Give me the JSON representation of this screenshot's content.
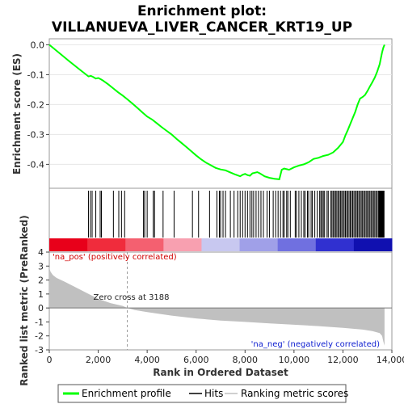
{
  "chart_data": {
    "type": "line",
    "title_line1": "Enrichment plot:",
    "title_line2": "VILLANUEVA_LIVER_CANCER_KRT19_UP",
    "es_panel": {
      "ylabel": "Enrichment score (ES)",
      "ylim": [
        -0.48,
        0.02
      ],
      "yticks": [
        "0.0",
        "-0.1",
        "-0.2",
        "-0.3",
        "-0.4"
      ],
      "series": [
        {
          "name": "Enrichment profile",
          "color": "#00ff00",
          "x": [
            0,
            400,
            800,
            1200,
            1600,
            1700,
            1800,
            1900,
            2000,
            2100,
            2200,
            2400,
            2600,
            2800,
            3000,
            3200,
            3400,
            3600,
            3800,
            4000,
            4200,
            4400,
            4600,
            4800,
            5000,
            5200,
            5400,
            5600,
            5800,
            6000,
            6200,
            6400,
            6600,
            6800,
            7000,
            7200,
            7400,
            7600,
            7800,
            7900,
            8000,
            8100,
            8200,
            8300,
            8400,
            8500,
            8600,
            8700,
            8800,
            9000,
            9200,
            9400,
            9500,
            9600,
            9800,
            10000,
            10200,
            10400,
            10600,
            10800,
            11000,
            11200,
            11400,
            11600,
            11800,
            12000,
            12100,
            12200,
            12300,
            12400,
            12500,
            12600,
            12700,
            12800,
            12900,
            13000,
            13100,
            13200,
            13300,
            13400,
            13500,
            13550,
            13600,
            13650,
            13700
          ],
          "y": [
            0.0,
            -0.027,
            -0.054,
            -0.08,
            -0.106,
            -0.104,
            -0.108,
            -0.113,
            -0.111,
            -0.115,
            -0.12,
            -0.132,
            -0.145,
            -0.158,
            -0.17,
            -0.183,
            -0.197,
            -0.211,
            -0.226,
            -0.24,
            -0.25,
            -0.263,
            -0.276,
            -0.288,
            -0.3,
            -0.315,
            -0.328,
            -0.342,
            -0.356,
            -0.37,
            -0.383,
            -0.394,
            -0.403,
            -0.412,
            -0.417,
            -0.42,
            -0.427,
            -0.434,
            -0.44,
            -0.435,
            -0.432,
            -0.436,
            -0.438,
            -0.43,
            -0.428,
            -0.426,
            -0.43,
            -0.435,
            -0.44,
            -0.445,
            -0.448,
            -0.45,
            -0.418,
            -0.414,
            -0.418,
            -0.41,
            -0.404,
            -0.4,
            -0.393,
            -0.382,
            -0.378,
            -0.372,
            -0.368,
            -0.36,
            -0.345,
            -0.325,
            -0.303,
            -0.285,
            -0.265,
            -0.245,
            -0.225,
            -0.2,
            -0.18,
            -0.175,
            -0.168,
            -0.155,
            -0.14,
            -0.125,
            -0.11,
            -0.09,
            -0.065,
            -0.045,
            -0.025,
            -0.01,
            0.0
          ]
        }
      ]
    },
    "hits_panel": {
      "name": "Hits",
      "positions": [
        1600,
        1680,
        1750,
        1900,
        2080,
        2130,
        2620,
        2840,
        2950,
        3080,
        3850,
        3900,
        4000,
        4250,
        4300,
        4650,
        5100,
        5850,
        6100,
        6550,
        6850,
        6950,
        7000,
        7100,
        7200,
        7400,
        7550,
        7700,
        7800,
        7900,
        8000,
        8100,
        8200,
        8280,
        8350,
        8450,
        8550,
        8650,
        8750,
        8900,
        9000,
        9150,
        9250,
        9350,
        9450,
        9550,
        9600,
        9700,
        9750,
        9850,
        10050,
        10100,
        10200,
        10300,
        10400,
        10450,
        10550,
        10600,
        10700,
        10750,
        10850,
        10950,
        11050,
        11100,
        11150,
        11200,
        11250,
        11350,
        11400,
        11500,
        11550,
        11600,
        11650,
        11700,
        11750,
        11800,
        11850,
        11900,
        11950,
        12000,
        12050,
        12100,
        12150,
        12200,
        12250,
        12300,
        12350,
        12400,
        12450,
        12500,
        12550,
        12600,
        12650,
        12700,
        12750,
        12800,
        12850,
        12900,
        12950,
        13000,
        13050,
        13100,
        13150,
        13200,
        13250,
        13300,
        13350,
        13400,
        13450,
        13480,
        13500,
        13520,
        13540,
        13560,
        13580,
        13600,
        13620,
        13640,
        13660,
        13680
      ]
    },
    "ranked_panel": {
      "ylabel": "Ranked list metric (PreRanked)",
      "xlabel": "Rank in Ordered Dataset",
      "ylim": [
        -3,
        4
      ],
      "yticks": [
        "4",
        "3",
        "2",
        "1",
        "0",
        "-1",
        "-2",
        "-3"
      ],
      "xlim": [
        0,
        14000
      ],
      "xticks": [
        "0",
        "2,000",
        "4,000",
        "6,000",
        "8,000",
        "10,000",
        "12,000",
        "14,000"
      ],
      "zero_cross_label": "Zero cross at 3188",
      "zero_cross": 3188,
      "pos_label": "'na_pos' (positively correlated)",
      "neg_label": "'na_neg' (negatively correlated)",
      "series": [
        {
          "name": "Ranking metric scores",
          "color": "#c0c0c0",
          "x": [
            0,
            50,
            150,
            300,
            600,
            1000,
            1500,
            2000,
            2500,
            3000,
            3188,
            3500,
            4000,
            5000,
            6000,
            7000,
            8000,
            9000,
            10000,
            11000,
            12000,
            12800,
            13200,
            13500,
            13600,
            13650,
            13700
          ],
          "y": [
            2.9,
            2.6,
            2.35,
            2.15,
            1.9,
            1.55,
            1.1,
            0.65,
            0.35,
            0.15,
            0.0,
            -0.15,
            -0.3,
            -0.55,
            -0.75,
            -0.9,
            -1.0,
            -1.1,
            -1.2,
            -1.3,
            -1.42,
            -1.55,
            -1.65,
            -1.8,
            -2.0,
            -2.4,
            -2.7
          ]
        }
      ]
    },
    "colorbar": {
      "stops": [
        "#e8001a",
        "#f02c3c",
        "#f46070",
        "#f8a0b0",
        "#c8c8f0",
        "#a0a0e8",
        "#7070e0",
        "#3030d0",
        "#1010b0"
      ]
    },
    "legend": {
      "items": [
        "Enrichment profile",
        "Hits",
        "Ranking metric scores"
      ]
    }
  }
}
